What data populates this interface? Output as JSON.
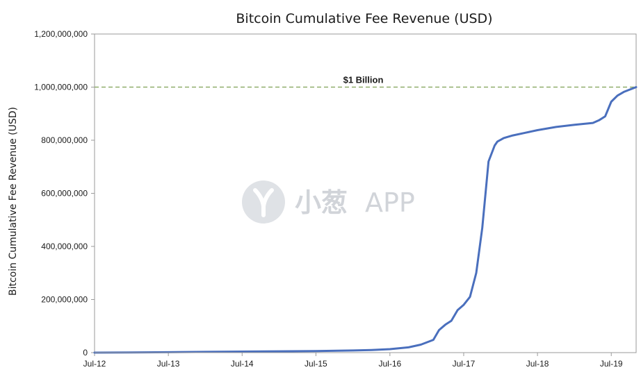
{
  "chart_data": {
    "type": "line",
    "title": "Bitcoin Cumulative Fee Revenue (USD)",
    "xlabel": "",
    "ylabel": "Bitcoin Cumulative Fee Revenue (USD)",
    "ylim": [
      0,
      1200000000
    ],
    "yticks": [
      0,
      200000000,
      400000000,
      600000000,
      800000000,
      1000000000,
      1200000000
    ],
    "ytick_labels": [
      "0",
      "200,000,000",
      "400,000,000",
      "600,000,000",
      "800,000,000",
      "1,000,000,000",
      "1,200,000,000"
    ],
    "xlim": [
      "2012-07-01",
      "2019-11-01"
    ],
    "xticks": [
      "2012-07-01",
      "2013-07-01",
      "2014-07-01",
      "2015-07-01",
      "2016-07-01",
      "2017-07-01",
      "2018-07-01",
      "2019-07-01"
    ],
    "xtick_labels": [
      "Jul-12",
      "Jul-13",
      "Jul-14",
      "Jul-15",
      "Jul-16",
      "Jul-17",
      "Jul-18",
      "Jul-19"
    ],
    "grid": false,
    "legend": "none",
    "line_color": "#4a6fbd",
    "reference_line": {
      "value": 1000000000,
      "label": "$1 Billion",
      "color": "#8fad6b",
      "style": "dashed"
    },
    "series": [
      {
        "x": [
          "2012-07-01",
          "2013-01-01",
          "2013-07-01",
          "2014-01-01",
          "2014-07-01",
          "2015-01-01",
          "2015-07-01",
          "2016-01-01",
          "2016-04-01",
          "2016-07-01",
          "2016-10-01",
          "2016-12-01",
          "2017-02-01",
          "2017-03-01",
          "2017-04-01",
          "2017-05-01",
          "2017-06-01",
          "2017-07-01",
          "2017-08-01",
          "2017-09-01",
          "2017-10-01",
          "2017-11-01",
          "2017-12-01",
          "2017-12-15",
          "2018-01-01",
          "2018-01-15",
          "2018-02-01",
          "2018-03-01",
          "2018-05-01",
          "2018-07-01",
          "2018-10-01",
          "2019-01-01",
          "2019-04-01",
          "2019-05-01",
          "2019-06-01",
          "2019-07-01",
          "2019-08-01",
          "2019-09-01",
          "2019-11-01"
        ],
        "values": [
          0,
          500000,
          1500000,
          3000000,
          4000000,
          5000000,
          6000000,
          8000000,
          10000000,
          13000000,
          20000000,
          30000000,
          48000000,
          85000000,
          105000000,
          120000000,
          160000000,
          180000000,
          210000000,
          300000000,
          470000000,
          720000000,
          780000000,
          795000000,
          802000000,
          808000000,
          812000000,
          818000000,
          828000000,
          838000000,
          850000000,
          858000000,
          865000000,
          875000000,
          890000000,
          945000000,
          968000000,
          982000000,
          1000000000
        ]
      }
    ]
  },
  "watermark": {
    "chinese_text": "小葱",
    "latin_text": "APP"
  }
}
